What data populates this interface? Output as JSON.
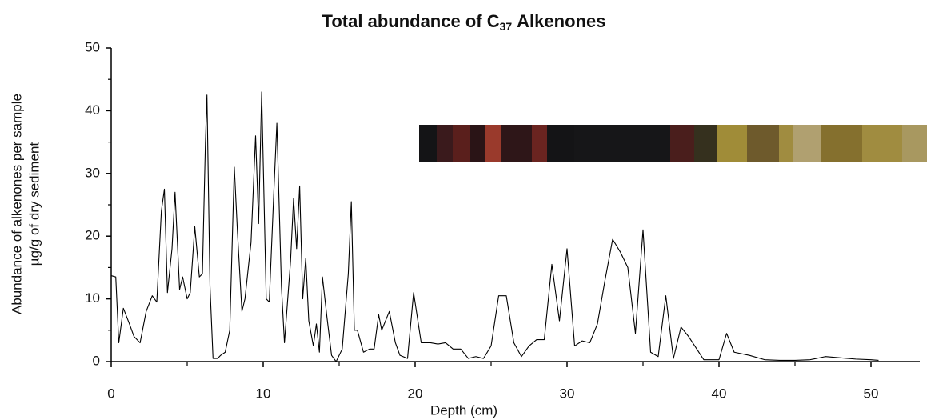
{
  "chart_data": {
    "type": "line",
    "title": {
      "text": "Total abundance of C",
      "subscript": "37",
      "suffix": "Alkenones"
    },
    "x_label": "Depth (cm)",
    "y_label": [
      "Abundance of alkenones per sample",
      "µg/g of dry sediment"
    ],
    "color": "#000000",
    "x": [
      0,
      0.3,
      0.5,
      0.8,
      1.2,
      1.5,
      1.9,
      2.3,
      2.7,
      3.0,
      3.3,
      3.5,
      3.7,
      4.0,
      4.2,
      4.5,
      4.7,
      5.0,
      5.2,
      5.5,
      5.8,
      6.0,
      6.2,
      6.3,
      6.5,
      6.7,
      7.0,
      7.2,
      7.5,
      7.8,
      8.1,
      8.3,
      8.6,
      8.8,
      9.2,
      9.5,
      9.7,
      9.9,
      10.2,
      10.4,
      10.7,
      10.9,
      11.2,
      11.4,
      11.8,
      12.0,
      12.2,
      12.4,
      12.6,
      12.8,
      13.0,
      13.3,
      13.5,
      13.7,
      13.9,
      14.2,
      14.5,
      14.8,
      15.2,
      15.6,
      15.8,
      16.0,
      16.2,
      16.6,
      17.0,
      17.3,
      17.6,
      17.8,
      18.3,
      18.7,
      19.0,
      19.5,
      19.9,
      20.4,
      21,
      21.5,
      22,
      22.5,
      23,
      23.5,
      24,
      24.5,
      25,
      25.5,
      26,
      26.5,
      27,
      27.5,
      28,
      28.5,
      29,
      29.5,
      30,
      30.5,
      31,
      31.5,
      32,
      32.5,
      33,
      33.5,
      34,
      34.5,
      35,
      35.5,
      36,
      36.5,
      37,
      37.5,
      38,
      39,
      40,
      40.5,
      41,
      42,
      43,
      44,
      45,
      46,
      47,
      48,
      49,
      50,
      50.5
    ],
    "values": [
      13.7,
      13.5,
      3,
      8.5,
      6,
      4,
      3,
      8,
      10.5,
      9.5,
      24,
      27.5,
      11,
      18,
      27,
      11.5,
      13.5,
      10,
      11,
      21.5,
      13.5,
      14,
      35,
      42.5,
      12,
      0.5,
      0.5,
      1,
      1.5,
      5,
      31,
      21,
      8,
      10,
      19,
      36,
      22,
      43,
      10,
      9.5,
      27,
      38,
      12,
      3,
      16,
      26,
      18,
      28,
      10,
      16.5,
      6.5,
      2.5,
      6,
      1.5,
      13.5,
      7,
      1,
      0,
      2,
      14,
      25.5,
      5,
      5,
      1.5,
      2,
      2,
      7.5,
      5,
      8,
      3,
      1,
      0.5,
      11,
      3,
      3,
      2.8,
      3,
      2,
      2,
      0.5,
      0.8,
      0.5,
      2.5,
      10.5,
      10.5,
      3,
      0.8,
      2.5,
      3.5,
      3.5,
      15.5,
      6.5,
      18,
      2.5,
      3.3,
      3,
      6,
      13,
      19.5,
      17.5,
      15,
      4.5,
      21,
      1.5,
      0.8,
      10.5,
      0.5,
      5.5,
      4,
      0.3,
      0.3,
      4.5,
      1.5,
      1,
      0.3,
      0.2,
      0.2,
      0.3,
      0.8,
      0.6,
      0.4,
      0.3,
      0.2
    ],
    "xlim": [
      0,
      53
    ],
    "xticks": [
      0,
      10,
      20,
      30,
      40,
      50
    ],
    "xminorticks": [
      5,
      15,
      25,
      35,
      45
    ],
    "ylim": [
      0,
      50
    ],
    "yticks": [
      0,
      10,
      20,
      30,
      40,
      50
    ],
    "yminorticks": [
      5,
      15,
      25,
      35,
      45
    ]
  }
}
